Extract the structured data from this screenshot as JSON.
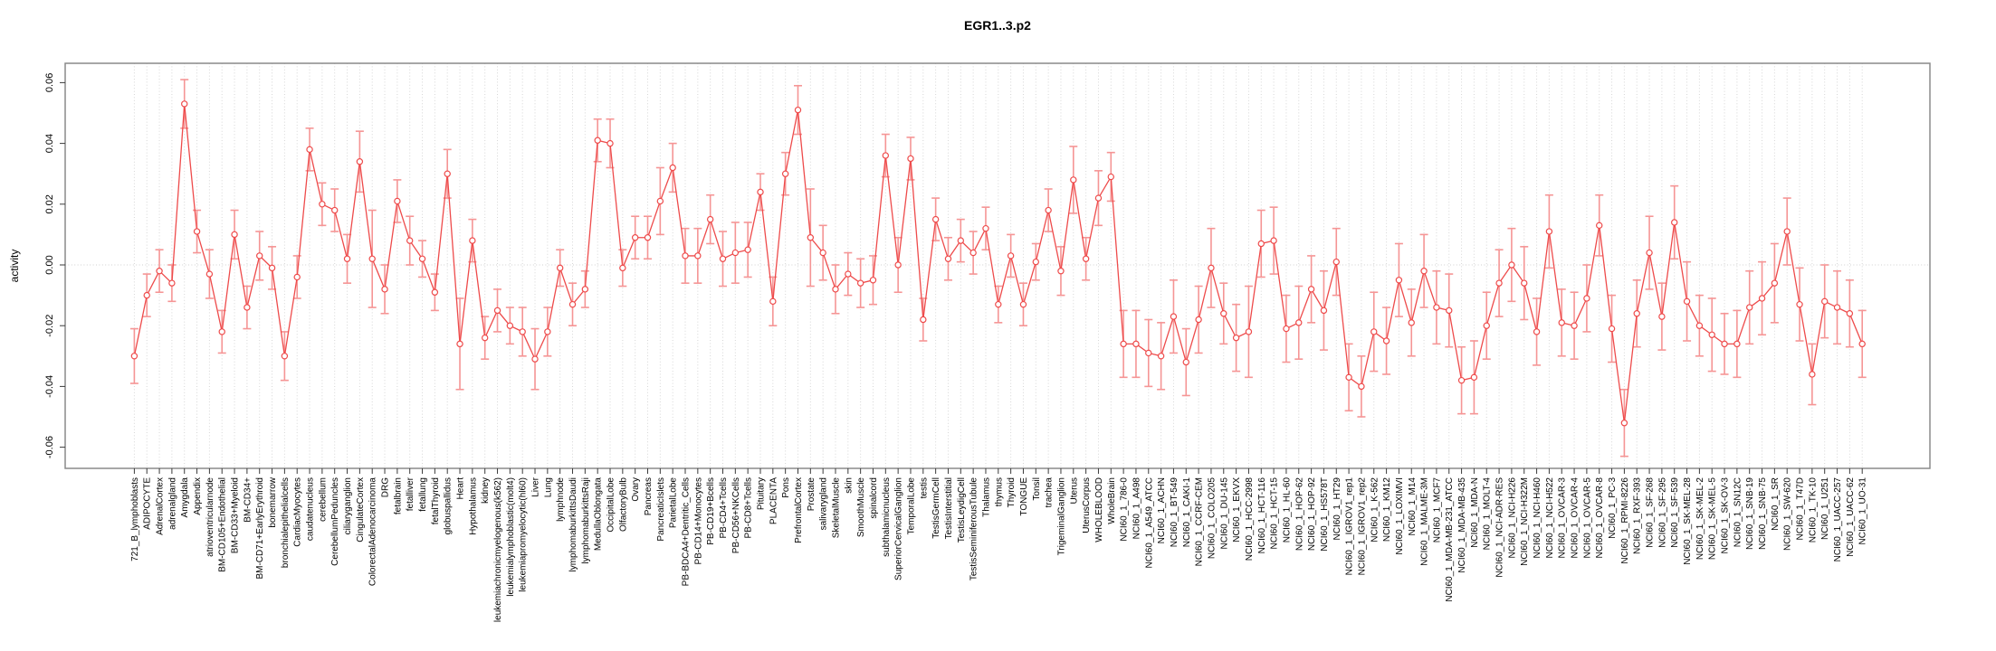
{
  "chart_data": {
    "type": "line",
    "title": "EGR1..3.p2",
    "ylabel": "activity",
    "xlabel": "",
    "ylim": [
      -0.067,
      0.066
    ],
    "yticks": [
      0.06,
      0.04,
      0.02,
      0.0,
      -0.02,
      -0.04,
      -0.06
    ],
    "ytick_labels": [
      "0.06",
      "0.04",
      "0.02",
      "0.00",
      "-0.02",
      "-0.04",
      "-0.06"
    ],
    "grid": {
      "vertical_per_category": true,
      "horizontal_zero_line": true,
      "style": "dotted"
    },
    "legend": null,
    "point_style": "open-circle",
    "error_bars": true,
    "x_label_rotation": 90,
    "colors": {
      "line": "#ee4b4b",
      "point": "#ee4b4b",
      "error_bar": "#f59595",
      "grid": "#d6d6d6",
      "box": "#8a8a8a",
      "text": "#000000",
      "background": "#ffffff"
    },
    "categories": [
      "721_B_lymphoblasts",
      "ADIPOCYTE",
      "AdrenalCortex",
      "adrenalgland",
      "Amygdala",
      "Appendix",
      "atrioventricularnode",
      "BM-CD105+Endothelial",
      "BM-CD33+Myeloid",
      "BM-CD34+",
      "BM-CD71+EarlyErythroid",
      "bonemarrow",
      "bronchialepithelialcells",
      "CardiacMyocytes",
      "caudatenucleus",
      "cerebellum",
      "CerebellumPeduncles",
      "ciliaryganglion",
      "CingulateCortex",
      "ColorectalAdenocarcinoma",
      "DRG",
      "fetalbrain",
      "fetalliver",
      "fetallung",
      "fetalThyroid",
      "globuspallidus",
      "Heart",
      "Hypothalamus",
      "kidney",
      "leukemiachronicmyelogenous(k562)",
      "leukemialymphoblastic(molt4)",
      "leukemiapromyelocytic(hl60)",
      "Liver",
      "Lung",
      "lymphnode",
      "lymphomaburkittsDaudi",
      "lymphomaburkittsRaji",
      "MedullaOblongata",
      "OccipitalLobe",
      "OlfactoryBulb",
      "Ovary",
      "Pancreas",
      "PancreaticIslets",
      "ParietalLobe",
      "PB-BDCA4+Dentritic_Cells",
      "PB-CD14+Monocytes",
      "PB-CD19+Bcells",
      "PB-CD4+Tcells",
      "PB-CD56+NKCells",
      "PB-CD8+Tcells",
      "Pituitary",
      "PLACENTA",
      "Pons",
      "PrefrontalCortex",
      "Prostate",
      "salivarygland",
      "SkeletalMuscle",
      "skin",
      "SmoothMuscle",
      "spinalcord",
      "subthalamicnucleus",
      "SuperiorCervicalGanglion",
      "TemporalLobe",
      "testis",
      "TestisGermCell",
      "TestisInterstitial",
      "TestisLeydigCell",
      "TestisSeminiferousTubule",
      "Thalamus",
      "thymus",
      "Thyroid",
      "TONGUE",
      "Tonsil",
      "trachea",
      "TrigeminalGanglion",
      "Uterus",
      "UterusCorpus",
      "WHOLEBLOOD",
      "WholeBrain",
      "NCI60_1_786-0",
      "NCI60_1_A498",
      "NCI60_1_A549_ATCC",
      "NCI60_1_ACHN",
      "NCI60_1_BT-549",
      "NCI60_1_CAKI-1",
      "NCI60_1_CCRF-CEM",
      "NCI60_1_COLO205",
      "NCI60_1_DU-145",
      "NCI60_1_EKVX",
      "NCI60_1_HCC-2998",
      "NCI60_1_HCT-116",
      "NCI60_1_HCT-15",
      "NCI60_1_HL-60",
      "NCI60_1_HOP-62",
      "NCI60_1_HOP-92",
      "NCI60_1_HS578T",
      "NCI60_1_HT29",
      "NCI60_1_IGROV1_rep1",
      "NCI60_1_IGROV1_rep2",
      "NCI60_1_K-562",
      "NCI60_1_KM12",
      "NCI60_1_LOXIMVI",
      "NCI60_1_M14",
      "NCI60_1_MALME-3M",
      "NCI60_1_MCF7",
      "NCI60_1_MDA-MB-231_ATCC",
      "NCI60_1_MDA-MB-435",
      "NCI60_1_MDA-N",
      "NCI60_1_MOLT-4",
      "NCI60_1_NCI-ADR-RES",
      "NCI60_1_NCI-H226",
      "NCI60_1_NCI-H322M",
      "NCI60_1_NCI-H460",
      "NCI60_1_NCI-H522",
      "NCI60_1_OVCAR-3",
      "NCI60_1_OVCAR-4",
      "NCI60_1_OVCAR-5",
      "NCI60_1_OVCAR-8",
      "NCI60_1_PC-3",
      "NCI60_1_RPMI-8226",
      "NCI60_1_RXF-393",
      "NCI60_1_SF-268",
      "NCI60_1_SF-295",
      "NCI60_1_SF-539",
      "NCI60_1_SK-MEL-28",
      "NCI60_1_SK-MEL-2",
      "NCI60_1_SK-MEL-5",
      "NCI60_1_SK-OV-3",
      "NCI60_1_SN12C",
      "NCI60_1_SNB-19",
      "NCI60_1_SNB-75",
      "NCI60_1_SR",
      "NCI60_1_SW-620",
      "NCI60_1_T47D",
      "NCI60_1_TK-10",
      "NCI60_1_U251",
      "NCI60_1_UACC-257",
      "NCI60_1_UACC-62",
      "NCI60_1_UO-31"
    ],
    "values": [
      -0.03,
      -0.01,
      -0.002,
      -0.006,
      0.053,
      0.011,
      -0.003,
      -0.022,
      0.01,
      -0.014,
      0.003,
      -0.001,
      -0.03,
      -0.004,
      0.038,
      0.02,
      0.018,
      0.002,
      0.034,
      0.002,
      -0.008,
      0.021,
      0.008,
      0.002,
      -0.009,
      0.03,
      -0.026,
      0.008,
      -0.024,
      -0.015,
      -0.02,
      -0.022,
      -0.031,
      -0.022,
      -0.001,
      -0.013,
      -0.008,
      0.041,
      0.04,
      -0.001,
      0.009,
      0.009,
      0.021,
      0.032,
      0.003,
      0.003,
      0.015,
      0.002,
      0.004,
      0.005,
      0.024,
      -0.012,
      0.03,
      0.051,
      0.009,
      0.004,
      -0.008,
      -0.003,
      -0.006,
      -0.005,
      0.036,
      0.0,
      0.035,
      -0.018,
      0.015,
      0.002,
      0.008,
      0.004,
      0.012,
      -0.013,
      0.003,
      -0.013,
      0.001,
      0.018,
      -0.002,
      0.028,
      0.002,
      0.022,
      0.029,
      -0.026,
      -0.026,
      -0.029,
      -0.03,
      -0.017,
      -0.032,
      -0.018,
      -0.001,
      -0.016,
      -0.024,
      -0.022,
      0.007,
      0.008,
      -0.021,
      -0.019,
      -0.008,
      -0.015,
      0.001,
      -0.037,
      -0.04,
      -0.022,
      -0.025,
      -0.005,
      -0.019,
      -0.002,
      -0.014,
      -0.015,
      -0.038,
      -0.037,
      -0.02,
      -0.006,
      0.0,
      -0.006,
      -0.022,
      0.011,
      -0.019,
      -0.02,
      -0.011,
      0.013,
      -0.021,
      -0.052,
      -0.016,
      0.004,
      -0.017,
      0.014,
      -0.012,
      -0.02,
      -0.023,
      -0.026,
      -0.026,
      -0.014,
      -0.011,
      -0.006,
      0.011,
      -0.013,
      -0.036,
      -0.012,
      -0.014,
      -0.016,
      -0.026
    ],
    "errors": [
      0.009,
      0.007,
      0.007,
      0.006,
      0.008,
      0.007,
      0.008,
      0.007,
      0.008,
      0.007,
      0.008,
      0.007,
      0.008,
      0.007,
      0.007,
      0.007,
      0.007,
      0.008,
      0.01,
      0.016,
      0.008,
      0.007,
      0.008,
      0.006,
      0.006,
      0.008,
      0.015,
      0.007,
      0.007,
      0.007,
      0.006,
      0.008,
      0.01,
      0.008,
      0.006,
      0.007,
      0.006,
      0.007,
      0.008,
      0.006,
      0.007,
      0.007,
      0.011,
      0.008,
      0.009,
      0.009,
      0.008,
      0.009,
      0.01,
      0.009,
      0.006,
      0.008,
      0.007,
      0.008,
      0.016,
      0.009,
      0.008,
      0.007,
      0.008,
      0.008,
      0.007,
      0.009,
      0.007,
      0.007,
      0.007,
      0.007,
      0.007,
      0.007,
      0.007,
      0.006,
      0.007,
      0.007,
      0.006,
      0.007,
      0.008,
      0.011,
      0.007,
      0.009,
      0.008,
      0.011,
      0.011,
      0.011,
      0.011,
      0.012,
      0.011,
      0.011,
      0.013,
      0.01,
      0.011,
      0.015,
      0.011,
      0.011,
      0.011,
      0.012,
      0.011,
      0.013,
      0.011,
      0.011,
      0.01,
      0.013,
      0.011,
      0.012,
      0.011,
      0.012,
      0.012,
      0.012,
      0.011,
      0.012,
      0.011,
      0.011,
      0.012,
      0.012,
      0.011,
      0.012,
      0.011,
      0.011,
      0.011,
      0.01,
      0.011,
      0.011,
      0.011,
      0.012,
      0.011,
      0.012,
      0.013,
      0.01,
      0.012,
      0.01,
      0.011,
      0.012,
      0.012,
      0.013,
      0.011,
      0.012,
      0.01,
      0.012,
      0.012,
      0.011,
      0.011
    ]
  }
}
